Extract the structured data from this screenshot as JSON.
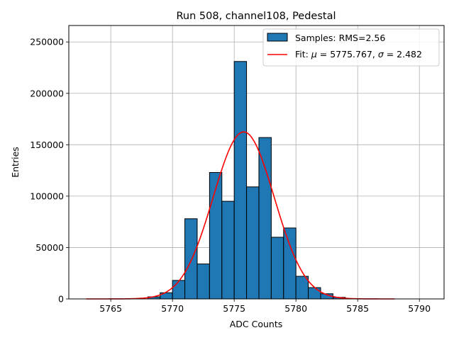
{
  "chart_data": {
    "type": "bar",
    "title": "Run 508, channel108, Pedestal",
    "xlabel": "ADC Counts",
    "ylabel": "Entries",
    "xlim": [
      5761.6,
      5792.0
    ],
    "ylim": [
      0,
      266000
    ],
    "xticks": [
      5765,
      5770,
      5775,
      5780,
      5785,
      5790
    ],
    "yticks": [
      0,
      50000,
      100000,
      150000,
      200000,
      250000
    ],
    "grid": true,
    "legend_position": "top-right",
    "colors": {
      "bars": "#1f77b4",
      "bar_edge": "#000000",
      "fit": "#ff0000",
      "grid": "#b0b0b0"
    },
    "series": [
      {
        "name": "Samples: RMS=2.56",
        "kind": "histogram",
        "bin_width": 1,
        "bins": [
          {
            "x0": 5768,
            "count": 2000
          },
          {
            "x0": 5769,
            "count": 6000
          },
          {
            "x0": 5770,
            "count": 18000
          },
          {
            "x0": 5771,
            "count": 78000
          },
          {
            "x0": 5772,
            "count": 34000
          },
          {
            "x0": 5773,
            "count": 123000
          },
          {
            "x0": 5774,
            "count": 95000
          },
          {
            "x0": 5775,
            "count": 231000
          },
          {
            "x0": 5776,
            "count": 109000
          },
          {
            "x0": 5777,
            "count": 157000
          },
          {
            "x0": 5778,
            "count": 60000
          },
          {
            "x0": 5779,
            "count": 69000
          },
          {
            "x0": 5780,
            "count": 22000
          },
          {
            "x0": 5781,
            "count": 11000
          },
          {
            "x0": 5782,
            "count": 5000
          },
          {
            "x0": 5783,
            "count": 1500
          }
        ]
      },
      {
        "name": "Fit: μ = 5775.767, σ = 2.482",
        "kind": "gaussian",
        "mu": 5775.767,
        "sigma": 2.482,
        "amplitude": 162500,
        "x_range": [
          5763,
          5788
        ]
      }
    ]
  }
}
